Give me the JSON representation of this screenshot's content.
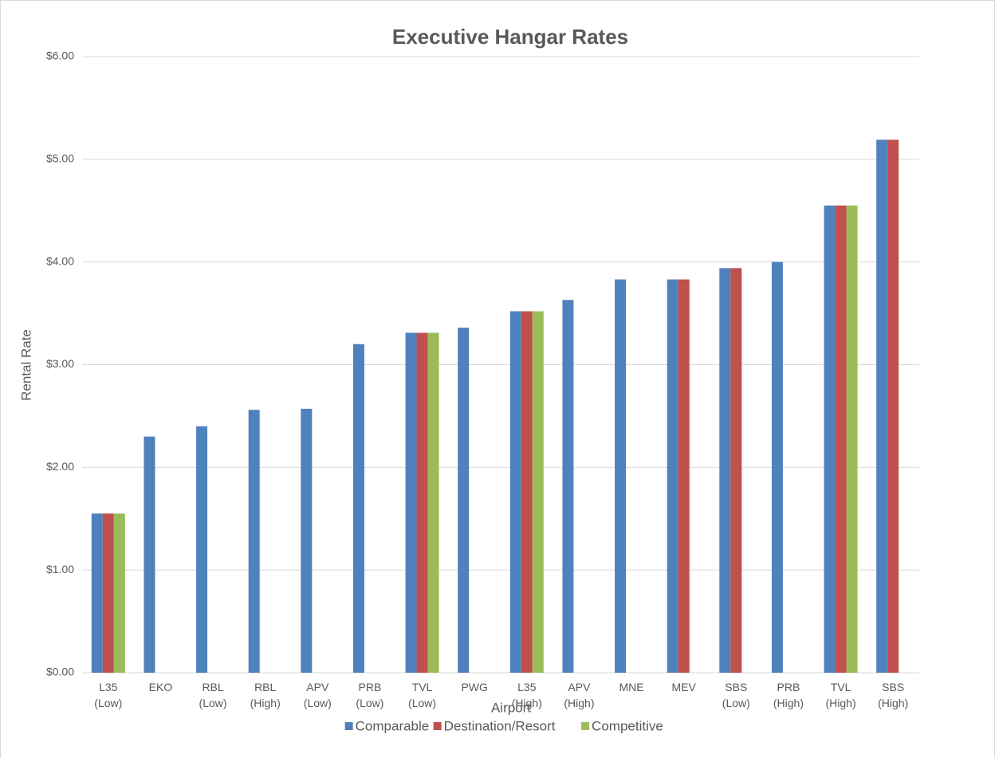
{
  "chart_data": {
    "type": "bar",
    "title": "Executive Hangar Rates",
    "y_label": "Rental Rate",
    "x_label": "Airport",
    "categories": [
      "L35\n(Low)",
      "EKO",
      "RBL\n(Low)",
      "RBL\n(High)",
      "APV\n(Low)",
      "PRB\n(Low)",
      "TVL\n(Low)",
      "PWG",
      "L35\n(High)",
      "APV\n(High)",
      "MNE",
      "MEV",
      "SBS\n(Low)",
      "PRB\n(High)",
      "TVL\n(High)",
      "SBS\n(High)"
    ],
    "series": [
      {
        "name": "Comparable",
        "color": "#4f81bd",
        "values": [
          1.55,
          2.3,
          2.4,
          2.56,
          2.57,
          3.2,
          3.31,
          3.36,
          3.52,
          3.63,
          3.83,
          3.83,
          3.94,
          4.0,
          4.55,
          5.19
        ]
      },
      {
        "name": "Destination/Resort",
        "color": "#c0504d",
        "values": [
          1.55,
          null,
          null,
          null,
          null,
          null,
          3.31,
          null,
          3.52,
          null,
          null,
          3.83,
          3.94,
          null,
          4.55,
          5.19
        ]
      },
      {
        "name": "Competitive",
        "color": "#9bbb59",
        "values": [
          1.55,
          null,
          null,
          null,
          null,
          null,
          3.31,
          null,
          3.52,
          null,
          null,
          null,
          null,
          null,
          4.55,
          null
        ]
      }
    ],
    "ylim": [
      0,
      6
    ],
    "yticks": [
      {
        "value": 0,
        "label": "$0.00"
      },
      {
        "value": 1,
        "label": "$1.00"
      },
      {
        "value": 2,
        "label": "$2.00"
      },
      {
        "value": 3,
        "label": "$3.00"
      },
      {
        "value": 4,
        "label": "$4.00"
      },
      {
        "value": 5,
        "label": "$5.00"
      },
      {
        "value": 6,
        "label": "$6.00"
      }
    ],
    "grid": true,
    "legend": "bottom"
  }
}
